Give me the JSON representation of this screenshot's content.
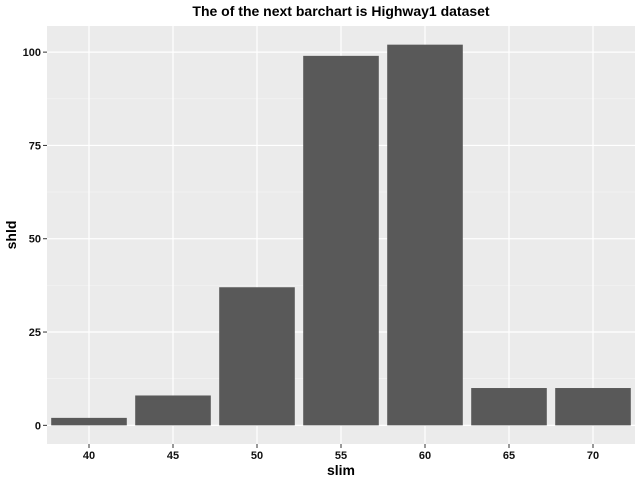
{
  "chart_data": {
    "type": "bar",
    "title": "The of the next barchart is Highway1 dataset",
    "xlabel": "slim",
    "ylabel": "shld",
    "categories": [
      "40",
      "45",
      "50",
      "55",
      "60",
      "65",
      "70"
    ],
    "values": [
      2,
      8,
      37,
      99,
      102,
      10,
      10
    ],
    "ylim": [
      -5,
      107
    ],
    "yticks": [
      0,
      25,
      50,
      75,
      100
    ],
    "grid": true,
    "legend": "none",
    "colors": {
      "bar": "#595959",
      "panel": "#ebebeb",
      "grid_major": "#ffffff",
      "grid_minor": "#f5f5f5"
    }
  }
}
